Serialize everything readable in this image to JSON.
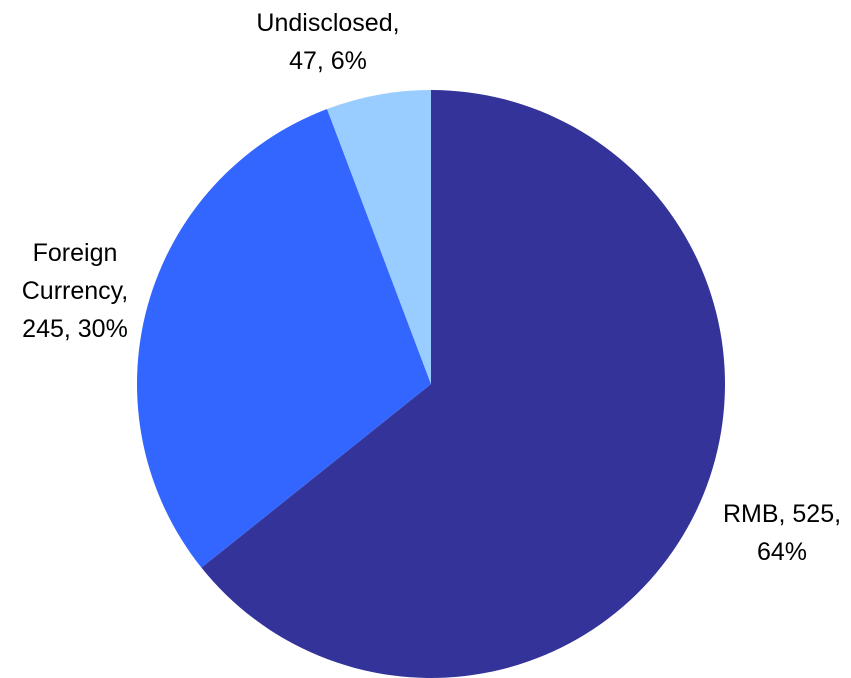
{
  "chart_data": {
    "type": "pie",
    "start_angle_deg": 0,
    "direction": "clockwise",
    "slices": [
      {
        "label": "RMB",
        "value": 525,
        "percent_text": "64%",
        "label_lines": [
          "RMB, 525,",
          "64%"
        ],
        "color": "#333399"
      },
      {
        "label": "Foreign Currency",
        "value": 245,
        "percent_text": "30%",
        "label_lines": [
          "Foreign",
          "Currency,",
          "245, 30%"
        ],
        "color": "#3366FF"
      },
      {
        "label": "Undisclosed",
        "value": 47,
        "percent_text": "6%",
        "label_lines": [
          "Undisclosed,",
          "47, 6%"
        ],
        "color": "#99CCFF"
      }
    ]
  }
}
